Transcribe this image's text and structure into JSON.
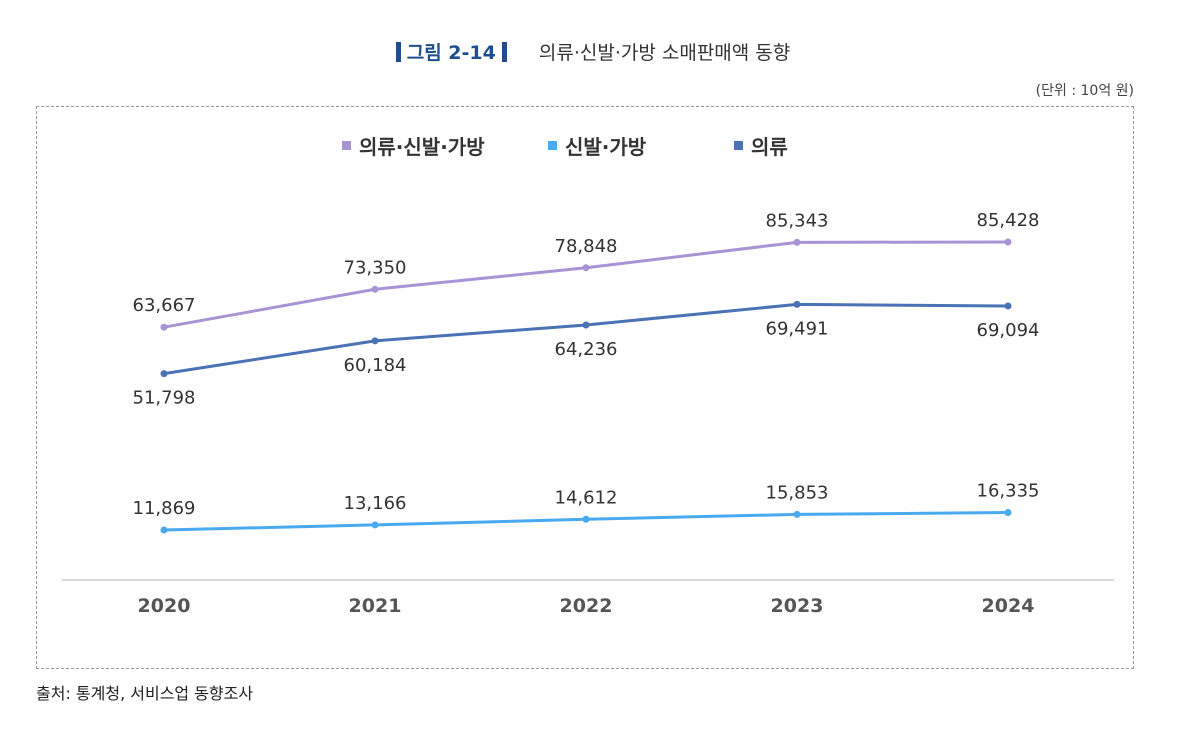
{
  "figure": {
    "label": "그림 2-14",
    "title": "의류·신발·가방 소매판매액 동향",
    "unit": "(단위 : 10억 원)",
    "source": "출처:  통계청,  서비스업 동향조사"
  },
  "colors": {
    "accent": "#1f4e8c",
    "series": [
      "#a893d4",
      "#4aaaf0",
      "#4a72b4"
    ],
    "baseline": "#d9d9d9"
  },
  "chart_data": {
    "type": "line",
    "title": "의류·신발·가방 소매판매액 동향",
    "x": [
      "2020",
      "2021",
      "2022",
      "2023",
      "2024"
    ],
    "ylabel": "",
    "unit": "(단위 : 10억 원)",
    "grid": false,
    "legend_position": "top",
    "series": [
      {
        "name": "의류·신발·가방",
        "values": [
          63667,
          73350,
          78848,
          85343,
          85428
        ],
        "labels": [
          "63,667",
          "73,350",
          "78,848",
          "85,343",
          "85,428"
        ],
        "label_side": "above"
      },
      {
        "name": "신발·가방",
        "values": [
          11869,
          13166,
          14612,
          15853,
          16335
        ],
        "labels": [
          "11,869",
          "13,166",
          "14,612",
          "15,853",
          "16,335"
        ],
        "label_side": "above"
      },
      {
        "name": "의류",
        "values": [
          51798,
          60184,
          64236,
          69491,
          69094
        ],
        "labels": [
          "51,798",
          "60,184",
          "64,236",
          "69,491",
          "69,094"
        ],
        "label_side": "below"
      }
    ]
  }
}
